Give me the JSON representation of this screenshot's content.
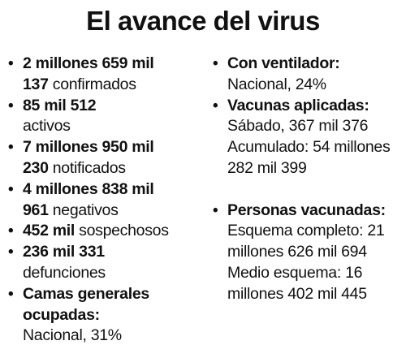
{
  "title": "El avance del virus",
  "left": {
    "items": [
      {
        "line1_bold": "2 millones 659 mil",
        "line2_bold": "137",
        "line2_text": " confirmados"
      },
      {
        "line1_bold": "85 mil 512",
        "line2_text": "activos"
      },
      {
        "line1_bold": "7 millones 950 mil",
        "line2_bold": "230",
        "line2_text": " notificados"
      },
      {
        "line1_bold": "4 millones 838 mil",
        "line2_bold": "961",
        "line2_text": " negativos"
      },
      {
        "line1_bold": "452 mil",
        "line1_text": " sospechosos"
      },
      {
        "line1_bold": "236 mil 331",
        "line2_text": "defunciones"
      },
      {
        "head": "Camas generales ocupadas:",
        "sub": "Nacional, 31%"
      }
    ]
  },
  "right": {
    "items": [
      {
        "head": "Con ventilador:",
        "sub": "Nacional, 24%"
      },
      {
        "head": "Vacunas aplicadas:",
        "sub1": "Sábado, 367 mil 376",
        "sub2": "Acumulado: 54 millones 282 mil 399"
      },
      {
        "head": "Personas vacunadas:",
        "sub1": "Esquema completo: 21 millones 626 mil 694",
        "sub2": "Medio esquema: 16 millones 402 mil 445"
      }
    ]
  },
  "bullet_symbol": "•"
}
